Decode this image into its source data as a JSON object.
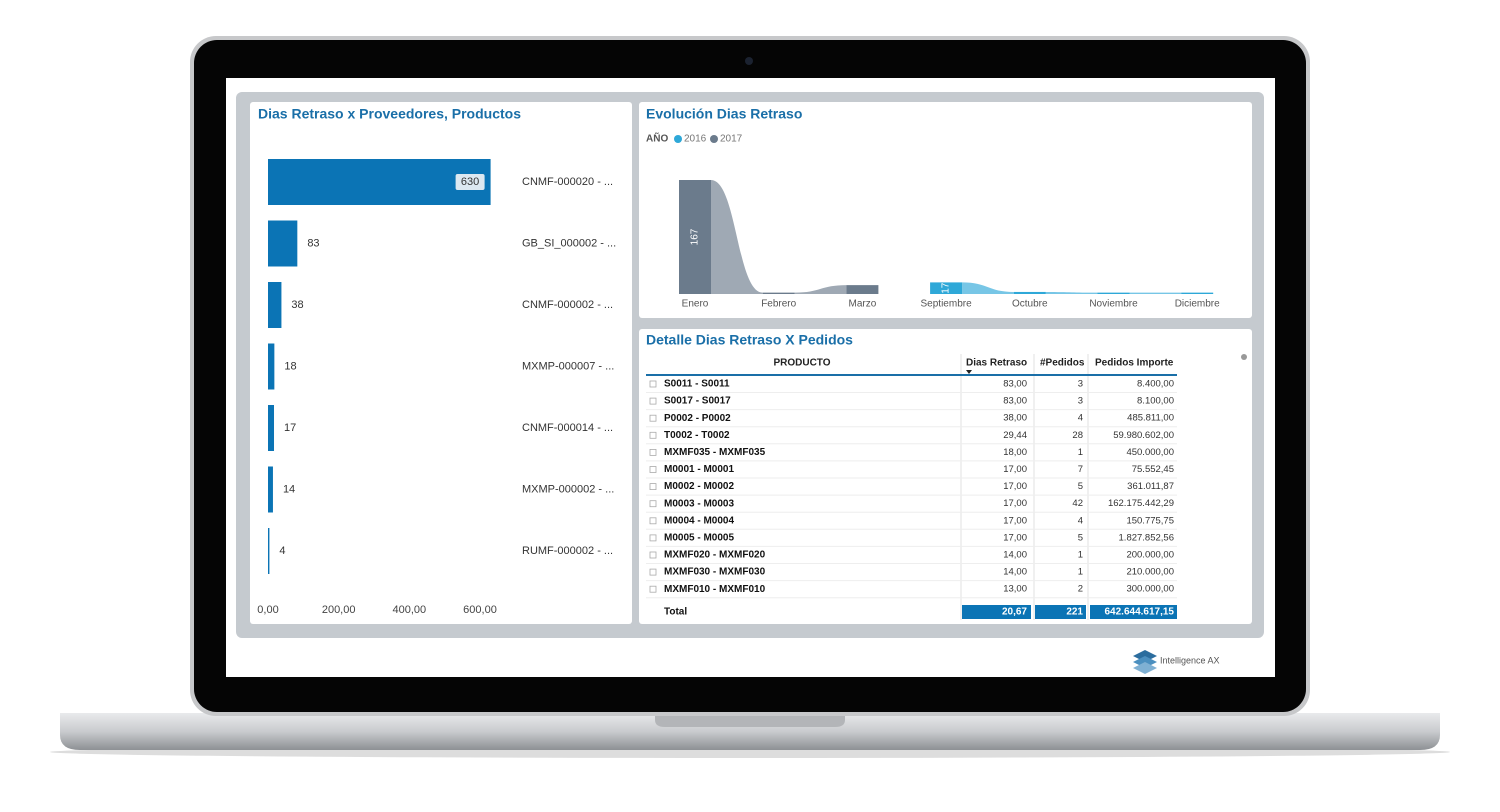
{
  "chart_data": [
    {
      "type": "hbar",
      "title": "Dias Retraso x Proveedores, Productos",
      "categories": [
        "CNMF-000020 - ...",
        "GB_SI_000002 - ...",
        "CNMF-000002 - ...",
        "MXMP-000007 - ...",
        "CNMF-000014 - ...",
        "MXMP-000002 - ...",
        "RUMF-000002 - ..."
      ],
      "values": [
        630,
        83,
        38,
        18,
        17,
        14,
        4
      ],
      "color": "#0b74b5",
      "xlim": [
        0,
        630
      ],
      "xticks": [
        {
          "value": 0,
          "label": "0,00"
        },
        {
          "value": 200,
          "label": "200,00"
        },
        {
          "value": 400,
          "label": "400,00"
        },
        {
          "value": 600,
          "label": "600,00"
        }
      ]
    },
    {
      "type": "ribbon",
      "title": "Evolución Dias Retraso",
      "legend_title": "AÑO",
      "categories": [
        "Enero",
        "Febrero",
        "Marzo",
        "Septiembre",
        "Octubre",
        "Noviembre",
        "Diciembre"
      ],
      "series": [
        {
          "name": "2016",
          "color": "#2ea8d8",
          "values": [
            null,
            null,
            null,
            17,
            3,
            2,
            2
          ],
          "labeled": [
            false,
            false,
            false,
            true,
            false,
            false,
            false
          ]
        },
        {
          "name": "2017",
          "color": "#6b7b8c",
          "values": [
            167,
            2,
            13,
            null,
            null,
            null,
            null
          ],
          "labeled": [
            true,
            false,
            false,
            false,
            false,
            false,
            false
          ]
        }
      ],
      "ylim": [
        0,
        167
      ]
    }
  ],
  "table": {
    "title": "Detalle Dias Retraso X Pedidos",
    "columns": [
      "PRODUCTO",
      "Dias Retraso",
      "#Pedidos",
      "Pedidos Importe"
    ],
    "rows": [
      [
        "S0011 - S0011",
        "83,00",
        "3",
        "8.400,00"
      ],
      [
        "S0017 - S0017",
        "83,00",
        "3",
        "8.100,00"
      ],
      [
        "P0002 - P0002",
        "38,00",
        "4",
        "485.811,00"
      ],
      [
        "T0002 - T0002",
        "29,44",
        "28",
        "59.980.602,00"
      ],
      [
        "MXMF035 - MXMF035",
        "18,00",
        "1",
        "450.000,00"
      ],
      [
        "M0001 - M0001",
        "17,00",
        "7",
        "75.552,45"
      ],
      [
        "M0002 - M0002",
        "17,00",
        "5",
        "361.011,87"
      ],
      [
        "M0003 - M0003",
        "17,00",
        "42",
        "162.175.442,29"
      ],
      [
        "M0004 - M0004",
        "17,00",
        "4",
        "150.775,75"
      ],
      [
        "M0005 - M0005",
        "17,00",
        "5",
        "1.827.852,56"
      ],
      [
        "MXMF020 - MXMF020",
        "14,00",
        "1",
        "200.000,00"
      ],
      [
        "MXMF030 - MXMF030",
        "14,00",
        "1",
        "210.000,00"
      ],
      [
        "MXMF010 - MXMF010",
        "13,00",
        "2",
        "300.000,00"
      ]
    ],
    "total": [
      "Total",
      "20,67",
      "221",
      "642.644.617,15"
    ]
  },
  "brand": "Intelligence AX"
}
